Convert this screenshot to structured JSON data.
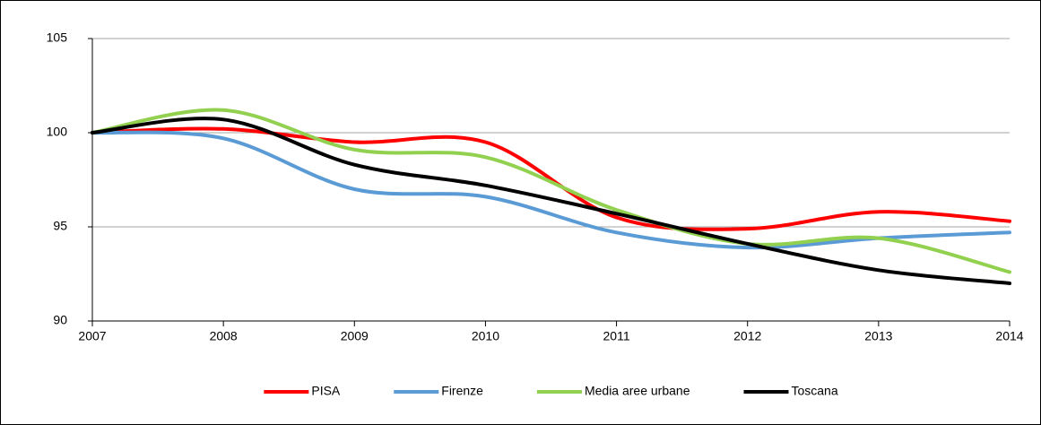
{
  "chart_data": {
    "type": "line",
    "categories": [
      "2007",
      "2008",
      "2009",
      "2010",
      "2011",
      "2012",
      "2013",
      "2014"
    ],
    "series": [
      {
        "name": "PISA",
        "color": "#ff0000",
        "values": [
          100,
          100.2,
          99.5,
          99.5,
          95.5,
          94.9,
          95.8,
          95.3
        ]
      },
      {
        "name": "Firenze",
        "color": "#5b9bd5",
        "values": [
          100,
          99.7,
          97.0,
          96.6,
          94.7,
          93.9,
          94.4,
          94.7
        ]
      },
      {
        "name": "Media aree urbane",
        "color": "#92d050",
        "values": [
          100,
          101.2,
          99.1,
          98.7,
          95.9,
          94.1,
          94.4,
          92.6
        ]
      },
      {
        "name": "Toscana",
        "color": "#000000",
        "values": [
          100,
          100.7,
          98.3,
          97.2,
          95.7,
          94.1,
          92.7,
          92.0
        ]
      }
    ],
    "ylim": [
      90,
      105
    ],
    "yticks": [
      90,
      95,
      100,
      105
    ],
    "grid": true,
    "legend": "bottom"
  }
}
